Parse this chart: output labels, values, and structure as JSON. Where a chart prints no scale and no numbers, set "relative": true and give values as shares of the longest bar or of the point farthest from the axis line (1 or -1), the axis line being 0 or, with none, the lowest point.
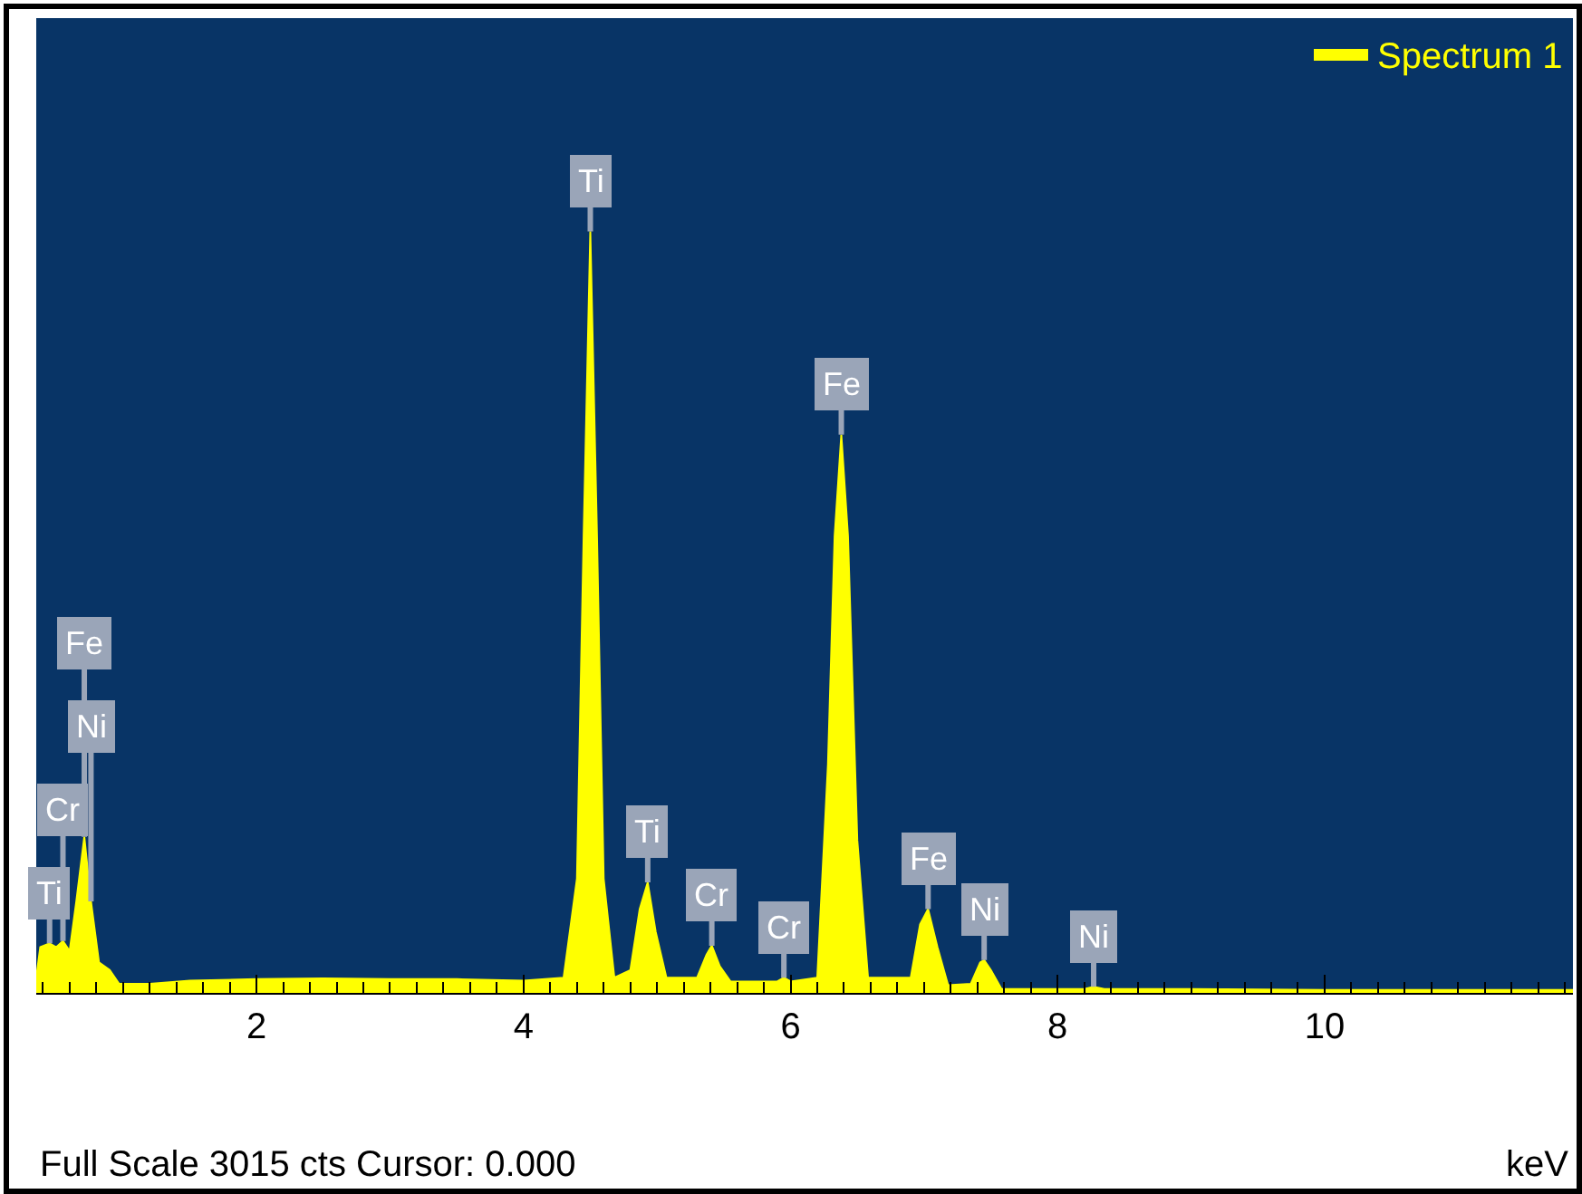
{
  "chart_data": {
    "type": "area",
    "relative": true,
    "xlabel": "keV",
    "legend": "top right",
    "x": [
      0.35,
      0.38,
      0.45,
      0.5,
      0.55,
      0.6,
      0.65,
      0.71,
      0.76,
      0.82,
      0.9,
      0.97,
      1.2,
      1.5,
      2.0,
      2.5,
      3.0,
      3.5,
      4.0,
      4.3,
      4.4,
      4.45,
      4.5,
      4.55,
      4.6,
      4.68,
      4.8,
      4.87,
      4.93,
      4.99,
      5.07,
      5.3,
      5.37,
      5.41,
      5.47,
      5.55,
      5.9,
      5.95,
      6.0,
      6.2,
      6.28,
      6.33,
      6.38,
      6.43,
      6.5,
      6.58,
      6.9,
      6.97,
      7.03,
      7.1,
      7.18,
      7.35,
      7.42,
      7.45,
      7.5,
      7.58,
      8.2,
      8.27,
      8.35,
      9,
      10,
      11,
      11.86
    ],
    "series": [
      {
        "name": "Spectrum 1",
        "color": "#ffff00",
        "values": [
          0.02,
          0.06,
          0.065,
          0.06,
          0.068,
          0.055,
          0.12,
          0.205,
          0.12,
          0.04,
          0.03,
          0.012,
          0.012,
          0.016,
          0.018,
          0.019,
          0.018,
          0.018,
          0.016,
          0.02,
          0.15,
          0.6,
          1.0,
          0.6,
          0.15,
          0.02,
          0.03,
          0.11,
          0.145,
          0.08,
          0.02,
          0.02,
          0.05,
          0.062,
          0.035,
          0.015,
          0.015,
          0.02,
          0.015,
          0.02,
          0.3,
          0.6,
          0.733,
          0.6,
          0.2,
          0.02,
          0.02,
          0.09,
          0.11,
          0.06,
          0.01,
          0.012,
          0.04,
          0.043,
          0.03,
          0.005,
          0.005,
          0.008,
          0.005,
          0.005,
          0.004,
          0.004,
          0.004
        ]
      }
    ],
    "xlim": [
      0.35,
      11.86
    ],
    "xticks": [
      2,
      4,
      6,
      8,
      10
    ],
    "annotations": [
      {
        "text": "Ti",
        "x": 4.5,
        "y": 1.0
      },
      {
        "text": "Fe",
        "x": 6.38,
        "y": 0.733
      },
      {
        "text": "Fe",
        "x": 0.71,
        "y": 0.205
      },
      {
        "text": "Ni",
        "x": 0.76,
        "y": 0.12
      },
      {
        "text": "Cr",
        "x": 0.55,
        "y": 0.068
      },
      {
        "text": "Ti",
        "x": 0.45,
        "y": 0.065
      },
      {
        "text": "Ti",
        "x": 4.93,
        "y": 0.145
      },
      {
        "text": "Cr",
        "x": 5.41,
        "y": 0.062
      },
      {
        "text": "Cr",
        "x": 5.95,
        "y": 0.02
      },
      {
        "text": "Fe",
        "x": 7.03,
        "y": 0.11
      },
      {
        "text": "Ni",
        "x": 7.45,
        "y": 0.043
      },
      {
        "text": "Ni",
        "x": 8.27,
        "y": 0.008
      },
      "Full Scale 3015 cts Cursor: 0.000"
    ]
  }
}
